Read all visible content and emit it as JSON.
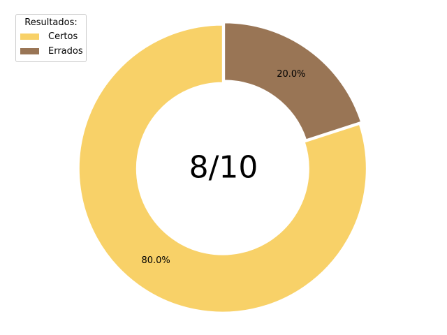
{
  "chart_data": {
    "type": "pie",
    "donut": true,
    "center_label": "8/10",
    "legend_title": "Resultados:",
    "legend_position": "upper-left",
    "start_angle_deg": 90,
    "direction": "clockwise",
    "slices": [
      {
        "label": "Errados",
        "value": 20.0,
        "pct_label": "20.0%",
        "color": "#997555"
      },
      {
        "label": "Certos",
        "value": 80.0,
        "pct_label": "80.0%",
        "color": "#f8d168"
      }
    ],
    "legend_order": [
      "Certos",
      "Errados"
    ]
  }
}
